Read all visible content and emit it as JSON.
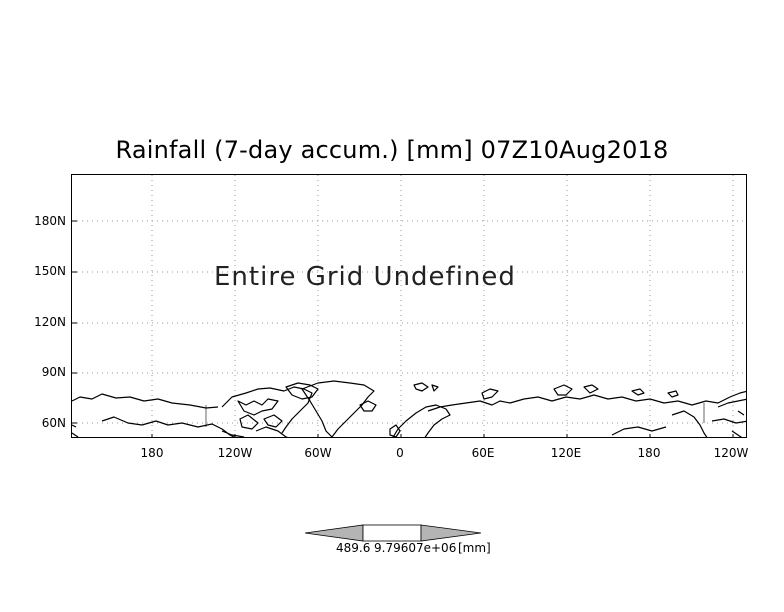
{
  "title": "Rainfall (7-day accum.) [mm] 07Z10Aug2018",
  "message": "Entire Grid Undefined",
  "lat_labels": [
    "180N",
    "150N",
    "120N",
    "90N",
    "60N"
  ],
  "lon_labels": [
    "180",
    "120W",
    "60W",
    "0",
    "60E",
    "120E",
    "180",
    "120W"
  ],
  "colorbar": {
    "min_label": "489.6",
    "max_label": "9.79607e+06",
    "unit": "[mm]"
  },
  "colors": {
    "frame": "#000000",
    "grid": "#9a9a9a",
    "coast": "#000000",
    "colorbar_fill": "#b4b4b4"
  }
}
